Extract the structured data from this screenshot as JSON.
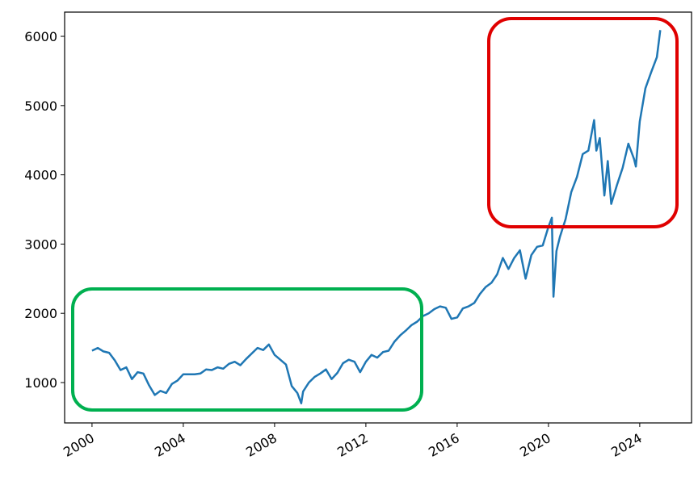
{
  "chart_data": {
    "type": "line",
    "color": "#1f77b4",
    "x": [
      2000.0,
      2000.25,
      2000.5,
      2000.75,
      2001.0,
      2001.25,
      2001.5,
      2001.75,
      2002.0,
      2002.25,
      2002.5,
      2002.75,
      2003.0,
      2003.25,
      2003.5,
      2003.75,
      2004.0,
      2004.25,
      2004.5,
      2004.75,
      2005.0,
      2005.25,
      2005.5,
      2005.75,
      2006.0,
      2006.25,
      2006.5,
      2006.75,
      2007.0,
      2007.25,
      2007.5,
      2007.75,
      2008.0,
      2008.25,
      2008.5,
      2008.75,
      2009.0,
      2009.17,
      2009.25,
      2009.5,
      2009.75,
      2010.0,
      2010.25,
      2010.5,
      2010.75,
      2011.0,
      2011.25,
      2011.5,
      2011.75,
      2012.0,
      2012.25,
      2012.5,
      2012.75,
      2013.0,
      2013.25,
      2013.5,
      2013.75,
      2014.0,
      2014.25,
      2014.5,
      2014.75,
      2015.0,
      2015.25,
      2015.5,
      2015.75,
      2016.0,
      2016.25,
      2016.5,
      2016.75,
      2017.0,
      2017.25,
      2017.5,
      2017.75,
      2018.0,
      2018.25,
      2018.5,
      2018.75,
      2019.0,
      2019.25,
      2019.5,
      2019.75,
      2020.0,
      2020.15,
      2020.22,
      2020.35,
      2020.5,
      2020.75,
      2021.0,
      2021.25,
      2021.5,
      2021.75,
      2022.0,
      2022.1,
      2022.25,
      2022.45,
      2022.6,
      2022.75,
      2023.0,
      2023.25,
      2023.5,
      2023.75,
      2023.83,
      2024.0,
      2024.25,
      2024.5,
      2024.75,
      2024.9
    ],
    "values": [
      1460,
      1500,
      1450,
      1430,
      1320,
      1180,
      1220,
      1050,
      1150,
      1130,
      960,
      820,
      880,
      850,
      980,
      1030,
      1120,
      1120,
      1120,
      1130,
      1190,
      1180,
      1220,
      1200,
      1270,
      1300,
      1250,
      1340,
      1420,
      1500,
      1470,
      1550,
      1400,
      1330,
      1260,
      950,
      850,
      700,
      870,
      1000,
      1080,
      1130,
      1190,
      1050,
      1140,
      1280,
      1330,
      1300,
      1150,
      1300,
      1400,
      1360,
      1440,
      1460,
      1590,
      1680,
      1750,
      1830,
      1880,
      1960,
      2000,
      2060,
      2100,
      2080,
      1920,
      1940,
      2070,
      2100,
      2150,
      2280,
      2380,
      2440,
      2560,
      2800,
      2640,
      2800,
      2910,
      2500,
      2840,
      2960,
      2980,
      3250,
      3380,
      2240,
      2900,
      3100,
      3360,
      3750,
      3970,
      4300,
      4350,
      4790,
      4350,
      4530,
      3700,
      4200,
      3580,
      3850,
      4100,
      4450,
      4230,
      4120,
      4770,
      5250,
      5480,
      5700,
      6090
    ],
    "xlim": [
      1998.8,
      2026.27
    ],
    "xticks": [
      2000,
      2004,
      2008,
      2012,
      2016,
      2020,
      2024
    ],
    "ylim": [
      417,
      6350
    ],
    "yticks": [
      1000,
      2000,
      3000,
      4000,
      5000,
      6000
    ]
  }
}
